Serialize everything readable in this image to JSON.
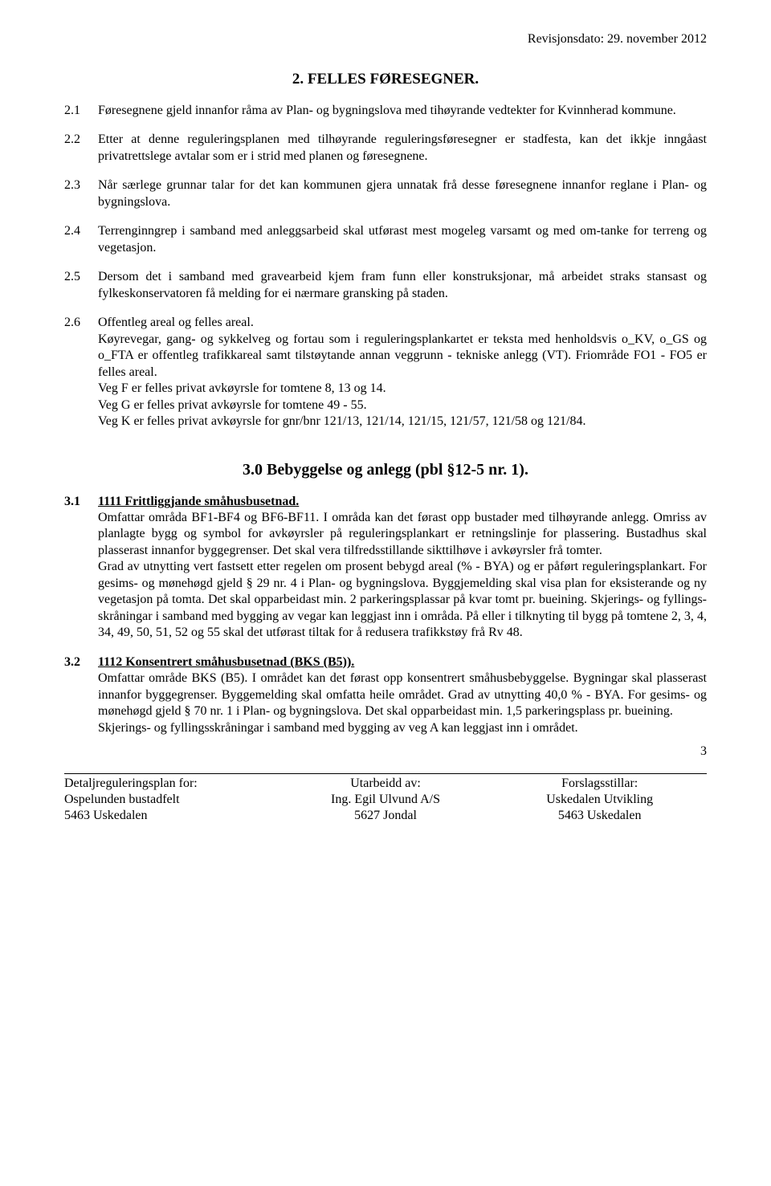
{
  "revision": "Revisjonsdato:  29. november 2012",
  "section2": {
    "title": "2. FELLES FØRESEGNER.",
    "items": [
      {
        "num": "2.1",
        "text": "Føresegnene gjeld innanfor råma av Plan- og bygningslova med tihøyrande vedtekter for Kvinnherad kommune."
      },
      {
        "num": "2.2",
        "text": "Etter at denne reguleringsplanen med tilhøyrande reguleringsføresegner er stadfesta, kan det ikkje inngåast privatrettslege avtalar som er i strid med planen og føresegnene."
      },
      {
        "num": "2.3",
        "text": "Når særlege grunnar talar for det kan kommunen gjera unnatak frå desse føresegnene innanfor reglane i Plan- og bygningslova."
      },
      {
        "num": "2.4",
        "text": "Terrenginngrep i samband med anleggsarbeid skal utførast mest mogeleg varsamt og  med om-tanke for terreng og vegetasjon."
      },
      {
        "num": "2.5",
        "text": "Dersom det i samband med gravearbeid kjem fram funn eller konstruksjonar, må arbeidet straks stansast og fylkeskonservatoren få melding for ei nærmare gransking på staden."
      },
      {
        "num": "2.6",
        "heading": "Offentleg areal og felles areal.",
        "text": "Køyrevegar, gang- og sykkelveg og fortau som i reguleringsplankartet er teksta med henholdsvis o_KV, o_GS og o_FTA er offentleg trafikkareal samt tilstøytande annan veggrunn - tekniske anlegg (VT).   Friområde FO1 - FO5 er felles areal.\nVeg F er felles privat avkøyrsle for tomtene 8, 13 og 14.\nVeg G er felles privat avkøyrsle for tomtene 49 - 55.\nVeg K er felles privat avkøyrsle for gnr/bnr 121/13, 121/14, 121/15, 121/57, 121/58 og 121/84."
      }
    ]
  },
  "section3": {
    "title": "3.0  Bebyggelse og anlegg (pbl §12-5 nr. 1).",
    "items": [
      {
        "num": "3.1",
        "heading": "1111 Frittliggjande småhusbusetnad.",
        "text": "Omfattar områda BF1-BF4 og BF6-BF11.  I områda kan det førast opp bustader med tilhøyrande anlegg.  Omriss av planlagte bygg og symbol for avkøyrsler på reguleringsplankart er retningslinje for plassering.  Bustadhus skal plasserast innanfor byggegrenser.   Det skal vera tilfredsstillande sikttilhøve i avkøyrsler frå tomter.\nGrad av utnytting vert fastsett etter regelen om prosent bebygd areal (% - BYA) og er påført reguleringsplankart.  For gesims- og mønehøgd gjeld § 29 nr. 4 i Plan- og bygningslova. Byggjemelding skal visa plan for eksisterande og ny vegetasjon på tomta.  Det skal opparbeidast min. 2 parkeringsplassar på kvar tomt pr. bueining.   Skjerings- og  fyllings-skråningar i samband med bygging av vegar kan leggjast inn i områda.  På eller i tilknyting til bygg på tomtene 2, 3, 4, 34, 49, 50, 51, 52 og 55 skal det utførast tiltak for å redusera trafikkstøy frå Rv 48."
      },
      {
        "num": "3.2",
        "heading": "1112 Konsentrert småhusbusetnad (BKS (B5)).",
        "text": "Omfattar område BKS (B5).  I området kan det førast opp konsentrert småhusbebyggelse.  Bygningar skal plasserast innanfor byggegrenser.  Byggemelding skal omfatta heile området.  Grad av utnytting 40,0 % - BYA.   For gesims- og mønehøgd gjeld § 70 nr. 1 i Plan- og bygningslova.  Det skal opparbeidast min. 1,5 parkeringsplass pr. bueining.\nSkjerings- og fyllingsskråningar i samband med bygging av veg A kan leggjast inn i området."
      }
    ]
  },
  "footer": {
    "left1": "Detaljreguleringsplan for:",
    "left2": "Ospelunden bustadfelt",
    "left3": "5463 Uskedalen",
    "mid1": "Utarbeidd av:",
    "mid2": "Ing. Egil Ulvund A/S",
    "mid3": "5627 Jondal",
    "right1": "Forslagsstillar:",
    "right2": "Uskedalen Utvikling",
    "right3": "5463 Uskedalen",
    "page": "3"
  }
}
